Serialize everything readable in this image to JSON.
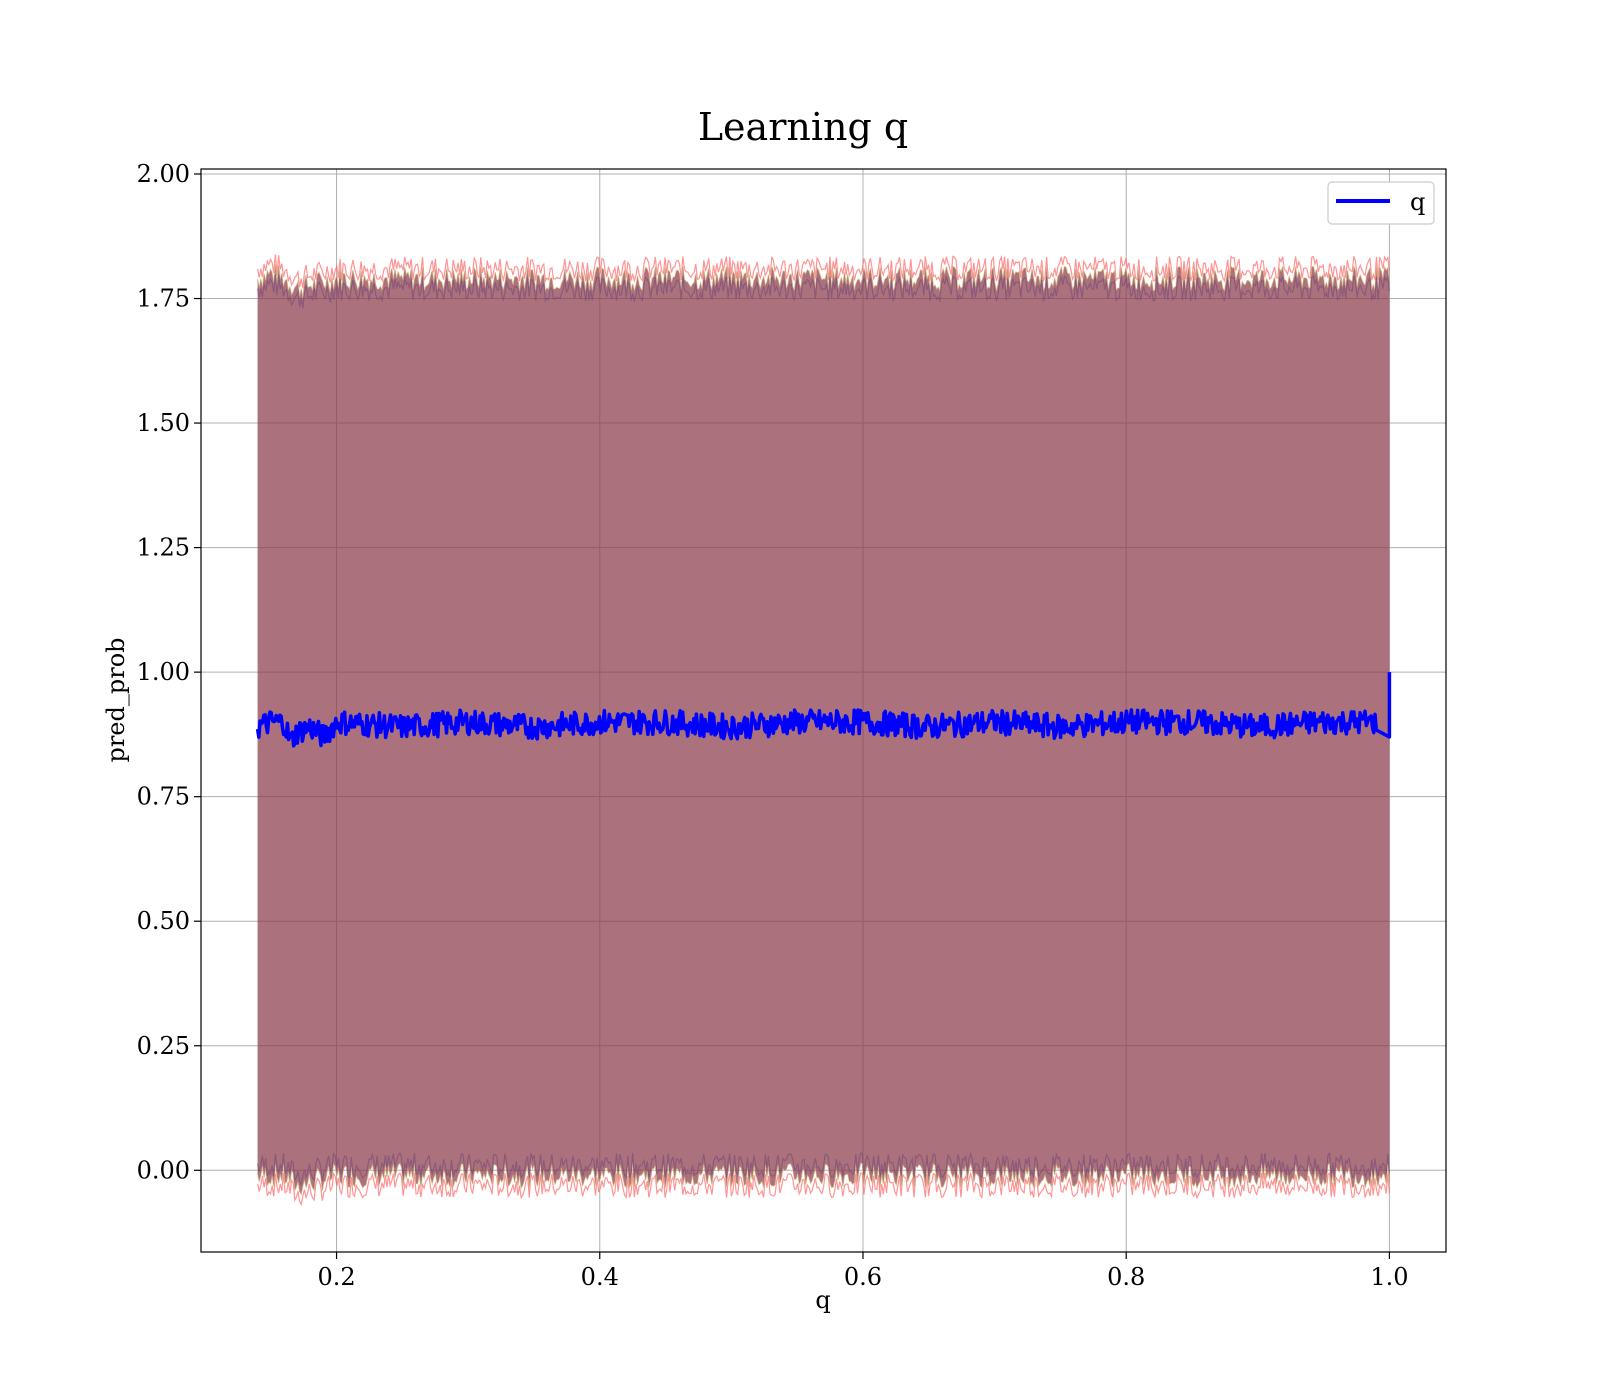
{
  "chart_data": {
    "type": "line",
    "title": "Learning q",
    "xlabel": "q",
    "ylabel": "pred_prob",
    "xlim": [
      0.097,
      1.043
    ],
    "ylim": [
      -0.164,
      2.01
    ],
    "xticks": [
      0.2,
      0.4,
      0.6,
      0.8,
      1.0
    ],
    "xtick_labels": [
      "0.2",
      "0.4",
      "0.6",
      "0.8",
      "1.0"
    ],
    "yticks": [
      0.0,
      0.25,
      0.5,
      0.75,
      1.0,
      1.25,
      1.5,
      1.75,
      2.0
    ],
    "ytick_labels": [
      "0.00",
      "0.25",
      "0.50",
      "0.75",
      "1.00",
      "1.25",
      "1.50",
      "1.75",
      "2.00"
    ],
    "grid": true,
    "legend": {
      "position": "top-right",
      "entries": [
        "q"
      ]
    },
    "colors": {
      "line": "#0000ff",
      "band": "#8b3a4a",
      "band_edges": "#ff6666"
    },
    "series": [
      {
        "name": "q",
        "x": [
          0.14,
          0.15,
          0.16,
          0.165,
          0.17,
          0.18,
          0.19,
          0.2,
          0.25,
          0.3,
          0.35,
          0.4,
          0.45,
          0.5,
          0.55,
          0.6,
          0.65,
          0.7,
          0.75,
          0.8,
          0.85,
          0.9,
          0.95,
          0.99,
          1.0
        ],
        "y": [
          0.89,
          0.9,
          0.9,
          0.86,
          0.88,
          0.89,
          0.87,
          0.9,
          0.89,
          0.9,
          0.89,
          0.9,
          0.9,
          0.89,
          0.9,
          0.9,
          0.89,
          0.9,
          0.89,
          0.9,
          0.9,
          0.89,
          0.9,
          0.9,
          1.0
        ]
      }
    ],
    "band": {
      "x": [
        0.14,
        0.15,
        0.16,
        0.17,
        0.2,
        0.3,
        0.4,
        0.5,
        0.6,
        0.7,
        0.8,
        0.9,
        1.0
      ],
      "upper": [
        1.79,
        1.8,
        1.79,
        1.77,
        1.79,
        1.79,
        1.79,
        1.79,
        1.79,
        1.79,
        1.79,
        1.79,
        1.79
      ],
      "lower": [
        -0.01,
        -0.01,
        -0.01,
        -0.03,
        -0.01,
        -0.01,
        -0.01,
        -0.01,
        -0.01,
        -0.01,
        -0.01,
        -0.01,
        -0.01
      ]
    }
  }
}
